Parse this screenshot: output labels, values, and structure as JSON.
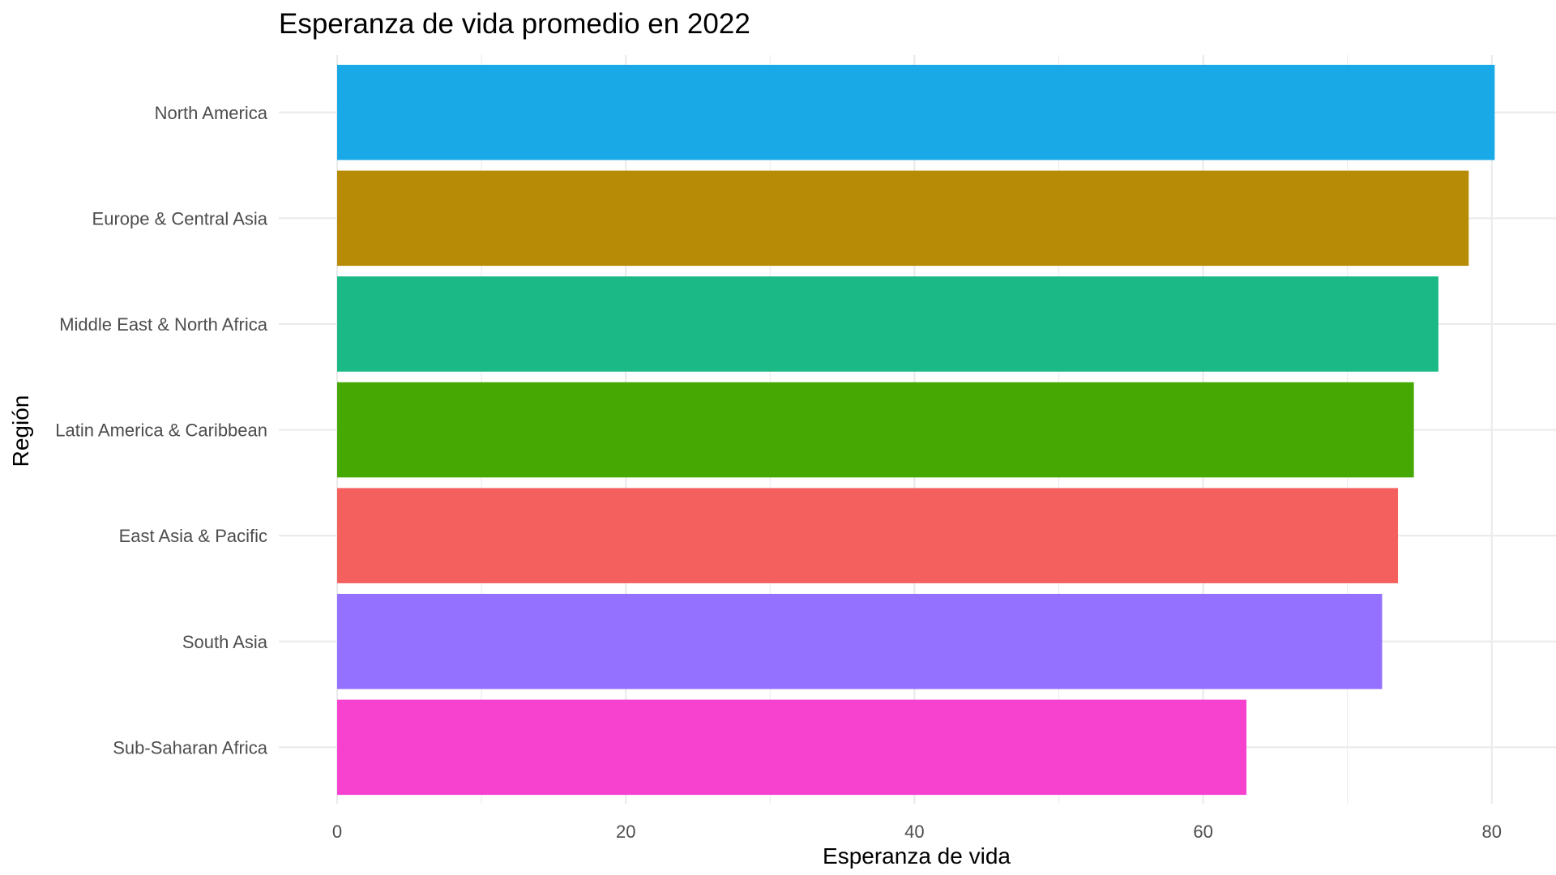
{
  "chart_data": {
    "type": "bar",
    "orientation": "horizontal",
    "title": "Esperanza de vida promedio en 2022",
    "xlabel": "Esperanza de vida",
    "ylabel": "Región",
    "xlim": [
      0,
      84
    ],
    "x_ticks": [
      0,
      20,
      40,
      60,
      80
    ],
    "x_tick_labels": [
      "0",
      "20",
      "40",
      "60",
      "80"
    ],
    "grid": true,
    "legend": "none",
    "categories": [
      "North America",
      "Europe & Central Asia",
      "Middle East & North Africa",
      "Latin America & Caribbean",
      "East Asia & Pacific",
      "South Asia",
      "Sub-Saharan Africa"
    ],
    "values": [
      80.2,
      78.4,
      76.3,
      74.6,
      73.5,
      72.4,
      63.0
    ],
    "colors": [
      "#19A9E6",
      "#B88B06",
      "#1BB986",
      "#46A903",
      "#F3605E",
      "#9571FF",
      "#F742CF"
    ]
  }
}
